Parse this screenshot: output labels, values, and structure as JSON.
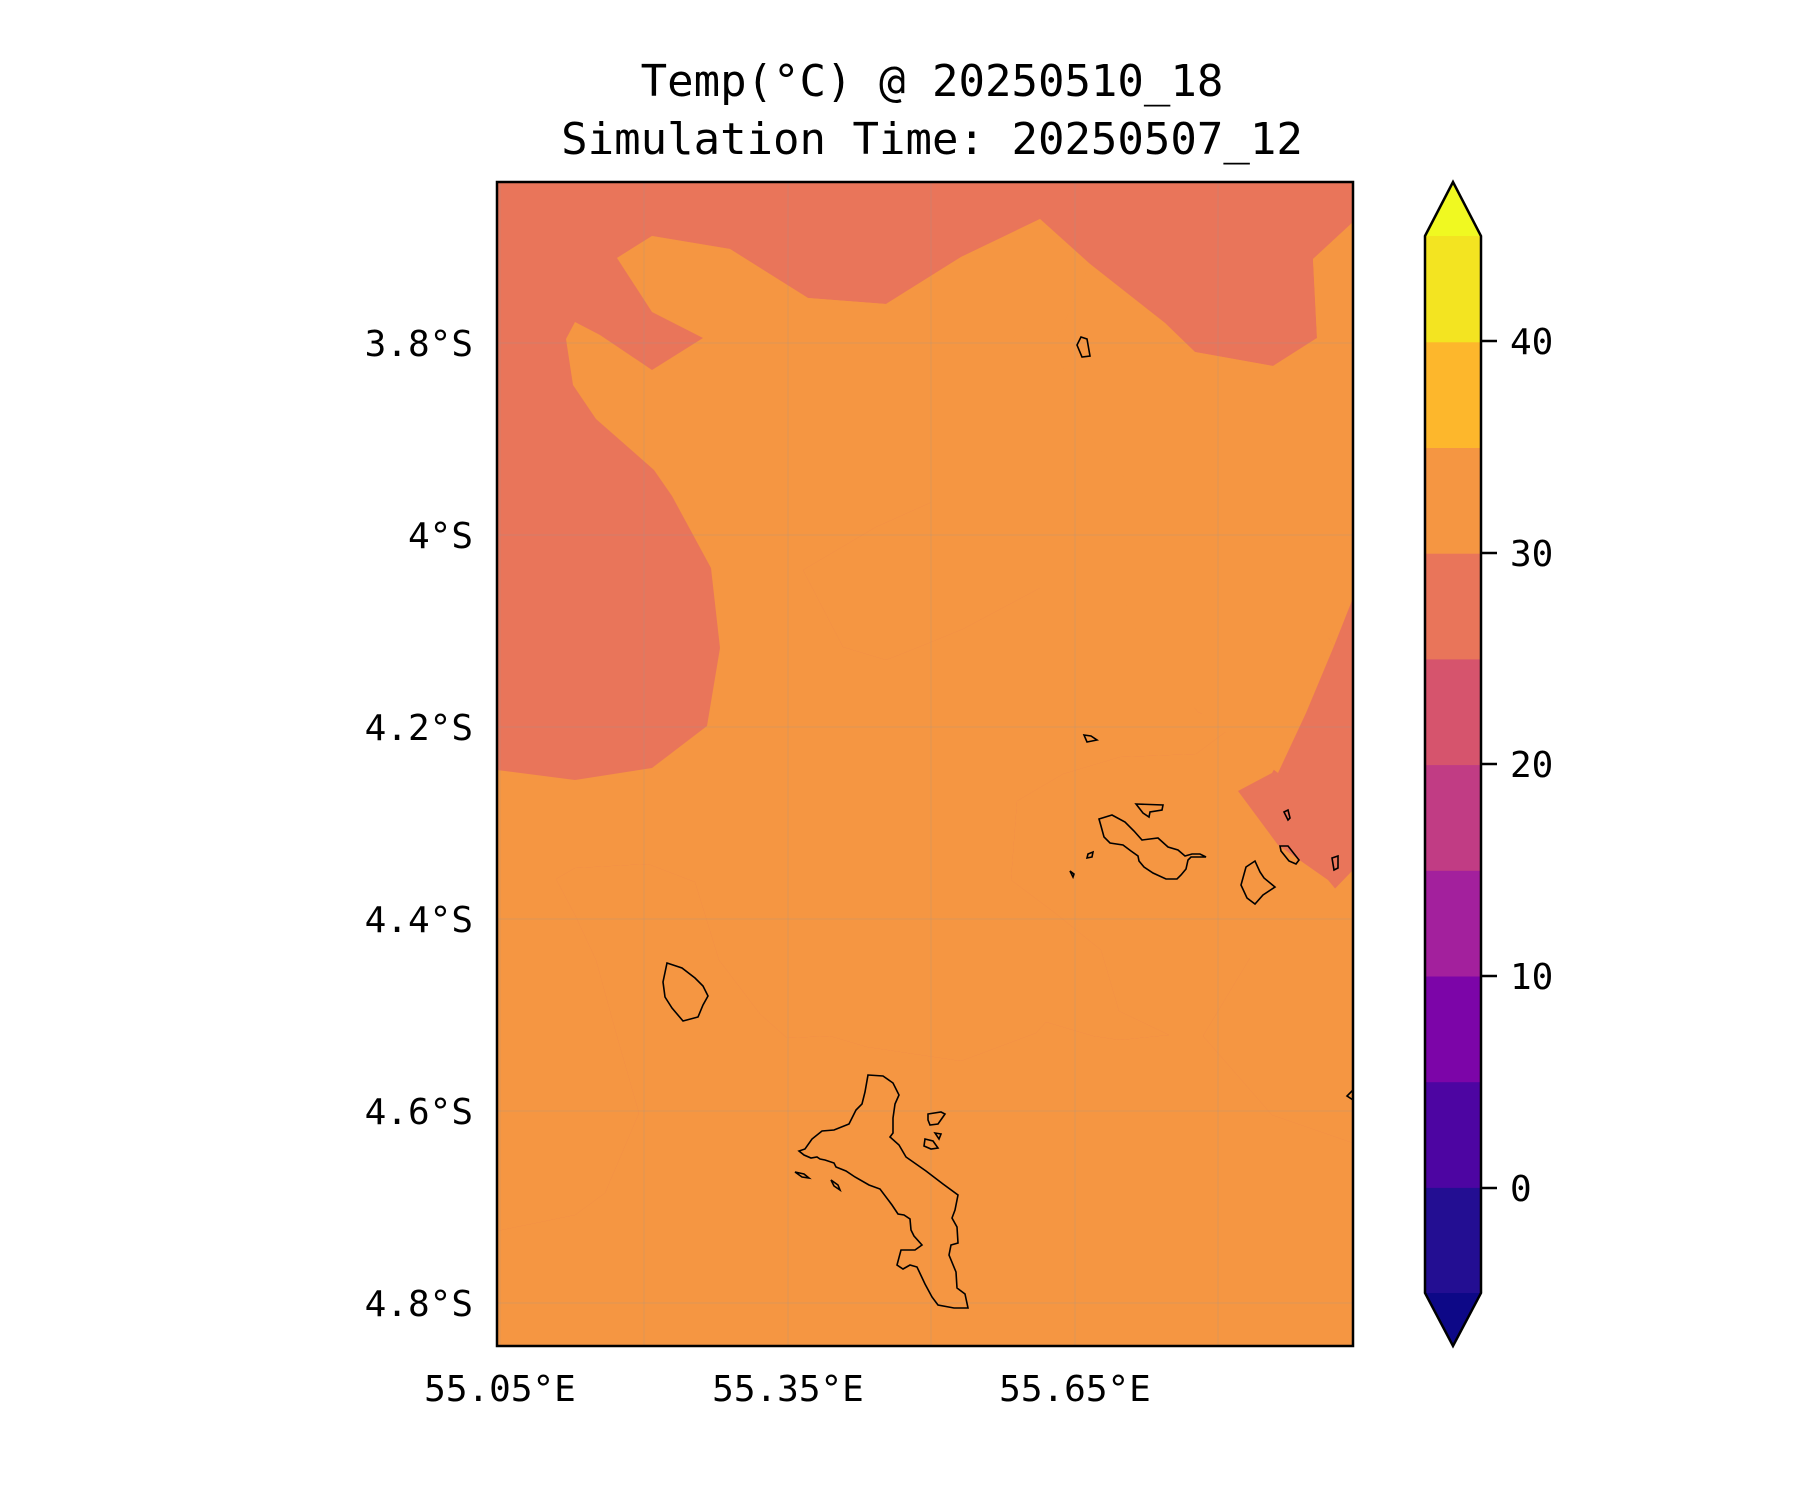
{
  "title": {
    "line1": "Temp(°C) @ 20250510_18",
    "line2": "Simulation Time: 20250507_12"
  },
  "map": {
    "variable": "Temp(°C)",
    "lat_ticks": [
      "3.8°S",
      "4°S",
      "4.2°S",
      "4.4°S",
      "4.6°S",
      "4.8°S"
    ],
    "lon_ticks": [
      "55.05°E",
      "55.35°E",
      "55.65°E"
    ],
    "extent": {
      "lon_min": 55.05,
      "lon_max": 55.95,
      "lat_min": -4.84,
      "lat_max": -3.62
    },
    "fill_colors": {
      "25-30": "#e9755a",
      "30-35": "#f59642"
    },
    "coastline_color": "#000000"
  },
  "colorbar": {
    "ticks": [
      "0",
      "10",
      "20",
      "30",
      "40"
    ],
    "levels": [
      -5,
      0,
      5,
      10,
      15,
      20,
      25,
      30,
      35,
      40,
      45
    ],
    "colors": [
      "#230e92",
      "#4d05a2",
      "#7c05a8",
      "#a3209d",
      "#c13c84",
      "#d6546d",
      "#e9755a",
      "#f59642",
      "#fdb72c",
      "#f3e421"
    ],
    "under_color": "#0d0887",
    "over_color": "#f0f921",
    "extend": "both"
  }
}
